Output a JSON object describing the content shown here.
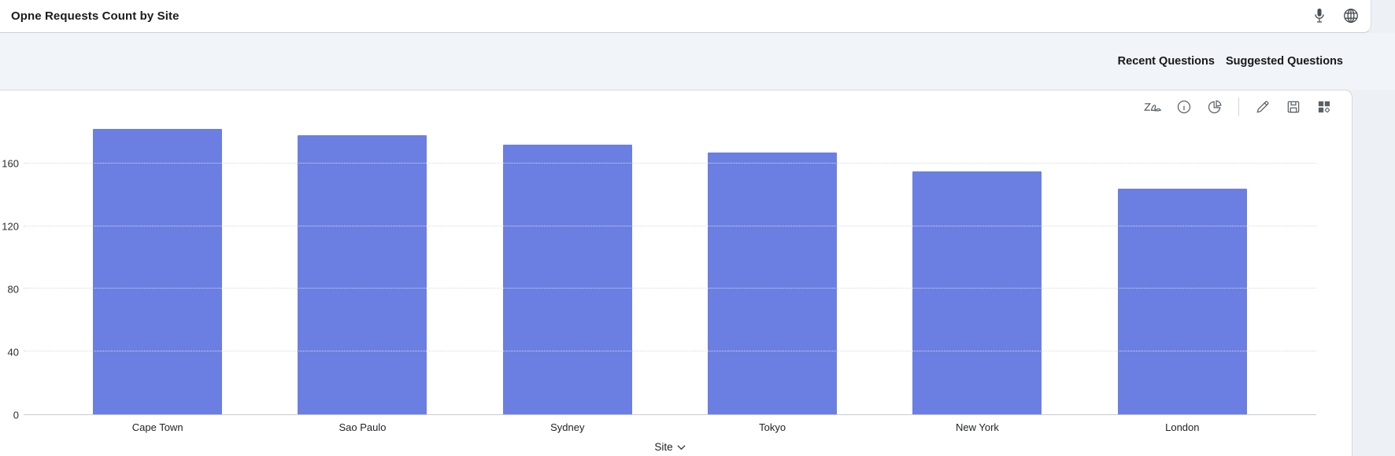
{
  "header": {
    "title": "Opne Requests Count by Site",
    "mic_icon": "microphone-icon",
    "globe_icon": "globe-language-icon"
  },
  "questions_bar": {
    "recent_label": "Recent Questions",
    "suggested_label": "Suggested Questions"
  },
  "chart_toolbar": {
    "icons": [
      "zia-insights",
      "info",
      "chart-type-pie",
      "edit-pencil",
      "save",
      "add-to-dashboard-grid-gear"
    ]
  },
  "chart_data": {
    "type": "bar",
    "title": "Opne Requests Count by Site",
    "categories": [
      "Cape Town",
      "Sao Paulo",
      "Sydney",
      "Tokyo",
      "New York",
      "London"
    ],
    "values": [
      182,
      178,
      172,
      167,
      155,
      144
    ],
    "xlabel": "Site",
    "ylabel": "",
    "yticks": [
      0,
      40,
      80,
      120,
      160
    ],
    "ylim": [
      0,
      200
    ],
    "grid": "horizontal-dotted",
    "legend": "none",
    "bar_color": "#6b7fe2"
  },
  "colors": {
    "bar": "#6b7fe2",
    "page_background": "#edf1f5",
    "band_background": "#f1f4f8",
    "card_background": "#ffffff",
    "border": "#d4d9de",
    "gridline": "#d7d9dc",
    "axis_line": "#c7cbd0",
    "icon": "#5a6066",
    "text": "#1b1b1d"
  }
}
